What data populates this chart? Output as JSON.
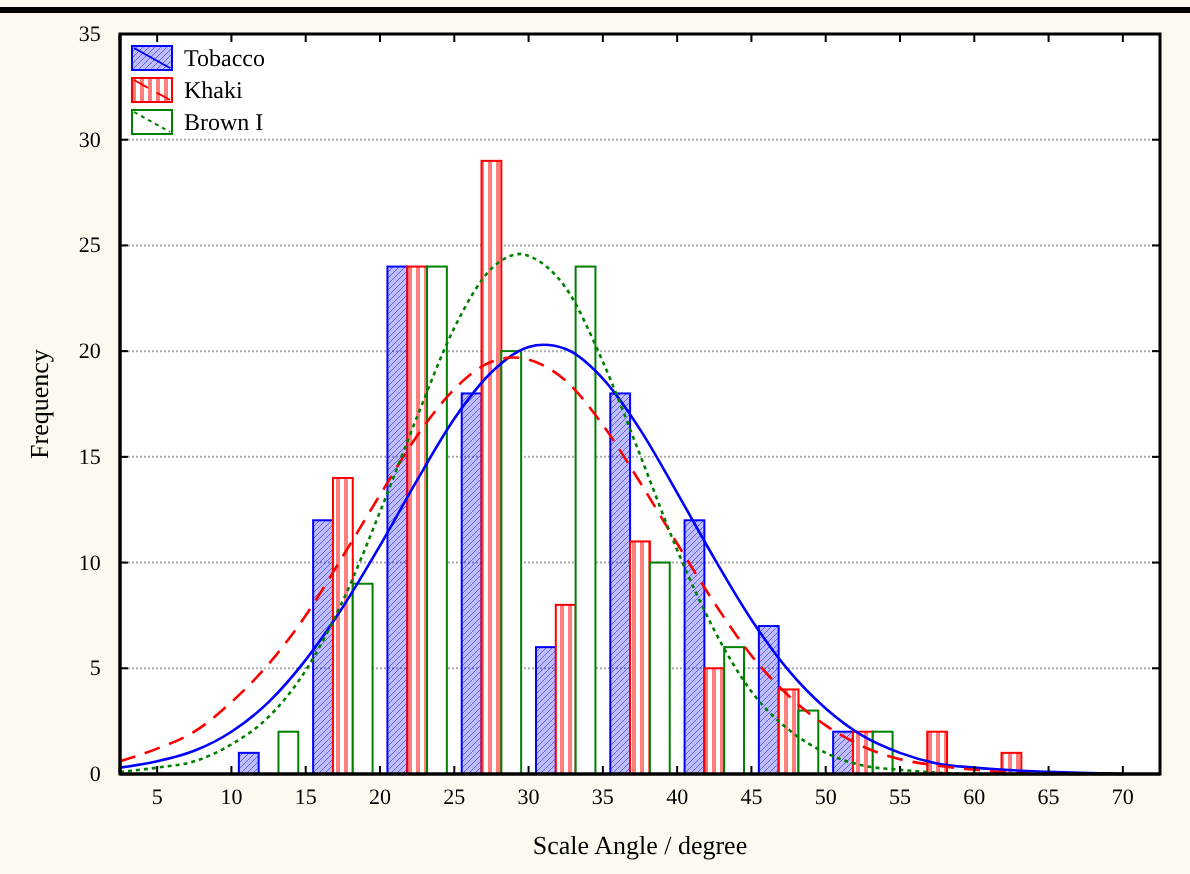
{
  "chart_data": {
    "type": "bar",
    "xlabel": "Scale Angle / degree",
    "ylabel": "Frequency",
    "x": [
      12.5,
      17.5,
      22.5,
      27.5,
      32.5,
      37.5,
      42.5,
      47.5,
      52.5,
      57.5,
      62.5
    ],
    "xlim": [
      2.5,
      72.5
    ],
    "xticks": [
      5,
      10,
      15,
      20,
      25,
      30,
      35,
      40,
      45,
      50,
      55,
      60,
      65,
      70
    ],
    "ylim": [
      0,
      35
    ],
    "yticks": [
      0,
      5,
      10,
      15,
      20,
      25,
      30,
      35
    ],
    "grid": "y",
    "legend": "top left",
    "series": [
      {
        "name": "Tobacco",
        "color": "#0000ff",
        "values": [
          1,
          12,
          24,
          18,
          6,
          18,
          12,
          7,
          2,
          0,
          0
        ]
      },
      {
        "name": "Khaki",
        "color": "#ff0000",
        "values": [
          0,
          14,
          24,
          29,
          8,
          11,
          5,
          4,
          2,
          2,
          1
        ]
      },
      {
        "name": "Brown I",
        "color": "#008000",
        "values": [
          2,
          9,
          24,
          20,
          24,
          10,
          6,
          3,
          2,
          0,
          0
        ]
      },
      {
        "type": "line",
        "color": "#0000ff",
        "line_style": "solid",
        "x": [
          2.5,
          5,
          7.5,
          10,
          12.5,
          15,
          17.5,
          20,
          22.5,
          25,
          27.5,
          30,
          31,
          32.5,
          35,
          37.5,
          40,
          42.5,
          45,
          47.5,
          50,
          52.5,
          55,
          57.5,
          60,
          65,
          70
        ],
        "values": [
          0.3,
          0.6,
          1.1,
          2.0,
          3.4,
          5.4,
          7.9,
          10.8,
          13.9,
          16.8,
          19.0,
          20.2,
          20.3,
          20.1,
          18.7,
          16.3,
          13.3,
          10.2,
          7.3,
          4.9,
          3.1,
          1.8,
          1.0,
          0.5,
          0.3,
          0.1,
          0
        ]
      },
      {
        "type": "line",
        "color": "#ff0000",
        "line_style": "dashed",
        "x": [
          2.5,
          5,
          7.5,
          10,
          12.5,
          15,
          17.5,
          20,
          22.5,
          25,
          27.5,
          29,
          30,
          32.5,
          35,
          37.5,
          40,
          42.5,
          45,
          47.5,
          50,
          52.5,
          55,
          57.5,
          60,
          65,
          70
        ],
        "values": [
          0.6,
          1.2,
          2.0,
          3.4,
          5.2,
          7.5,
          10.3,
          13.2,
          16.0,
          18.2,
          19.5,
          19.7,
          19.6,
          18.6,
          16.5,
          13.8,
          10.9,
          8.1,
          5.6,
          3.7,
          2.3,
          1.3,
          0.7,
          0.4,
          0.2,
          0,
          0
        ]
      },
      {
        "type": "line",
        "color": "#008000",
        "line_style": "dotted",
        "x": [
          2.5,
          5,
          7.5,
          10,
          12.5,
          15,
          17.5,
          20,
          22.5,
          25,
          27.5,
          29.5,
          30,
          32.5,
          35,
          37.5,
          40,
          42.5,
          45,
          47.5,
          50,
          52.5,
          55,
          60,
          65,
          70
        ],
        "values": [
          0.1,
          0.3,
          0.6,
          1.4,
          2.7,
          4.9,
          8.2,
          12.4,
          16.9,
          21.1,
          23.9,
          24.6,
          24.5,
          23.0,
          19.5,
          15.1,
          10.6,
          6.8,
          3.9,
          2.1,
          1.0,
          0.4,
          0.2,
          0,
          0,
          0
        ]
      }
    ]
  }
}
